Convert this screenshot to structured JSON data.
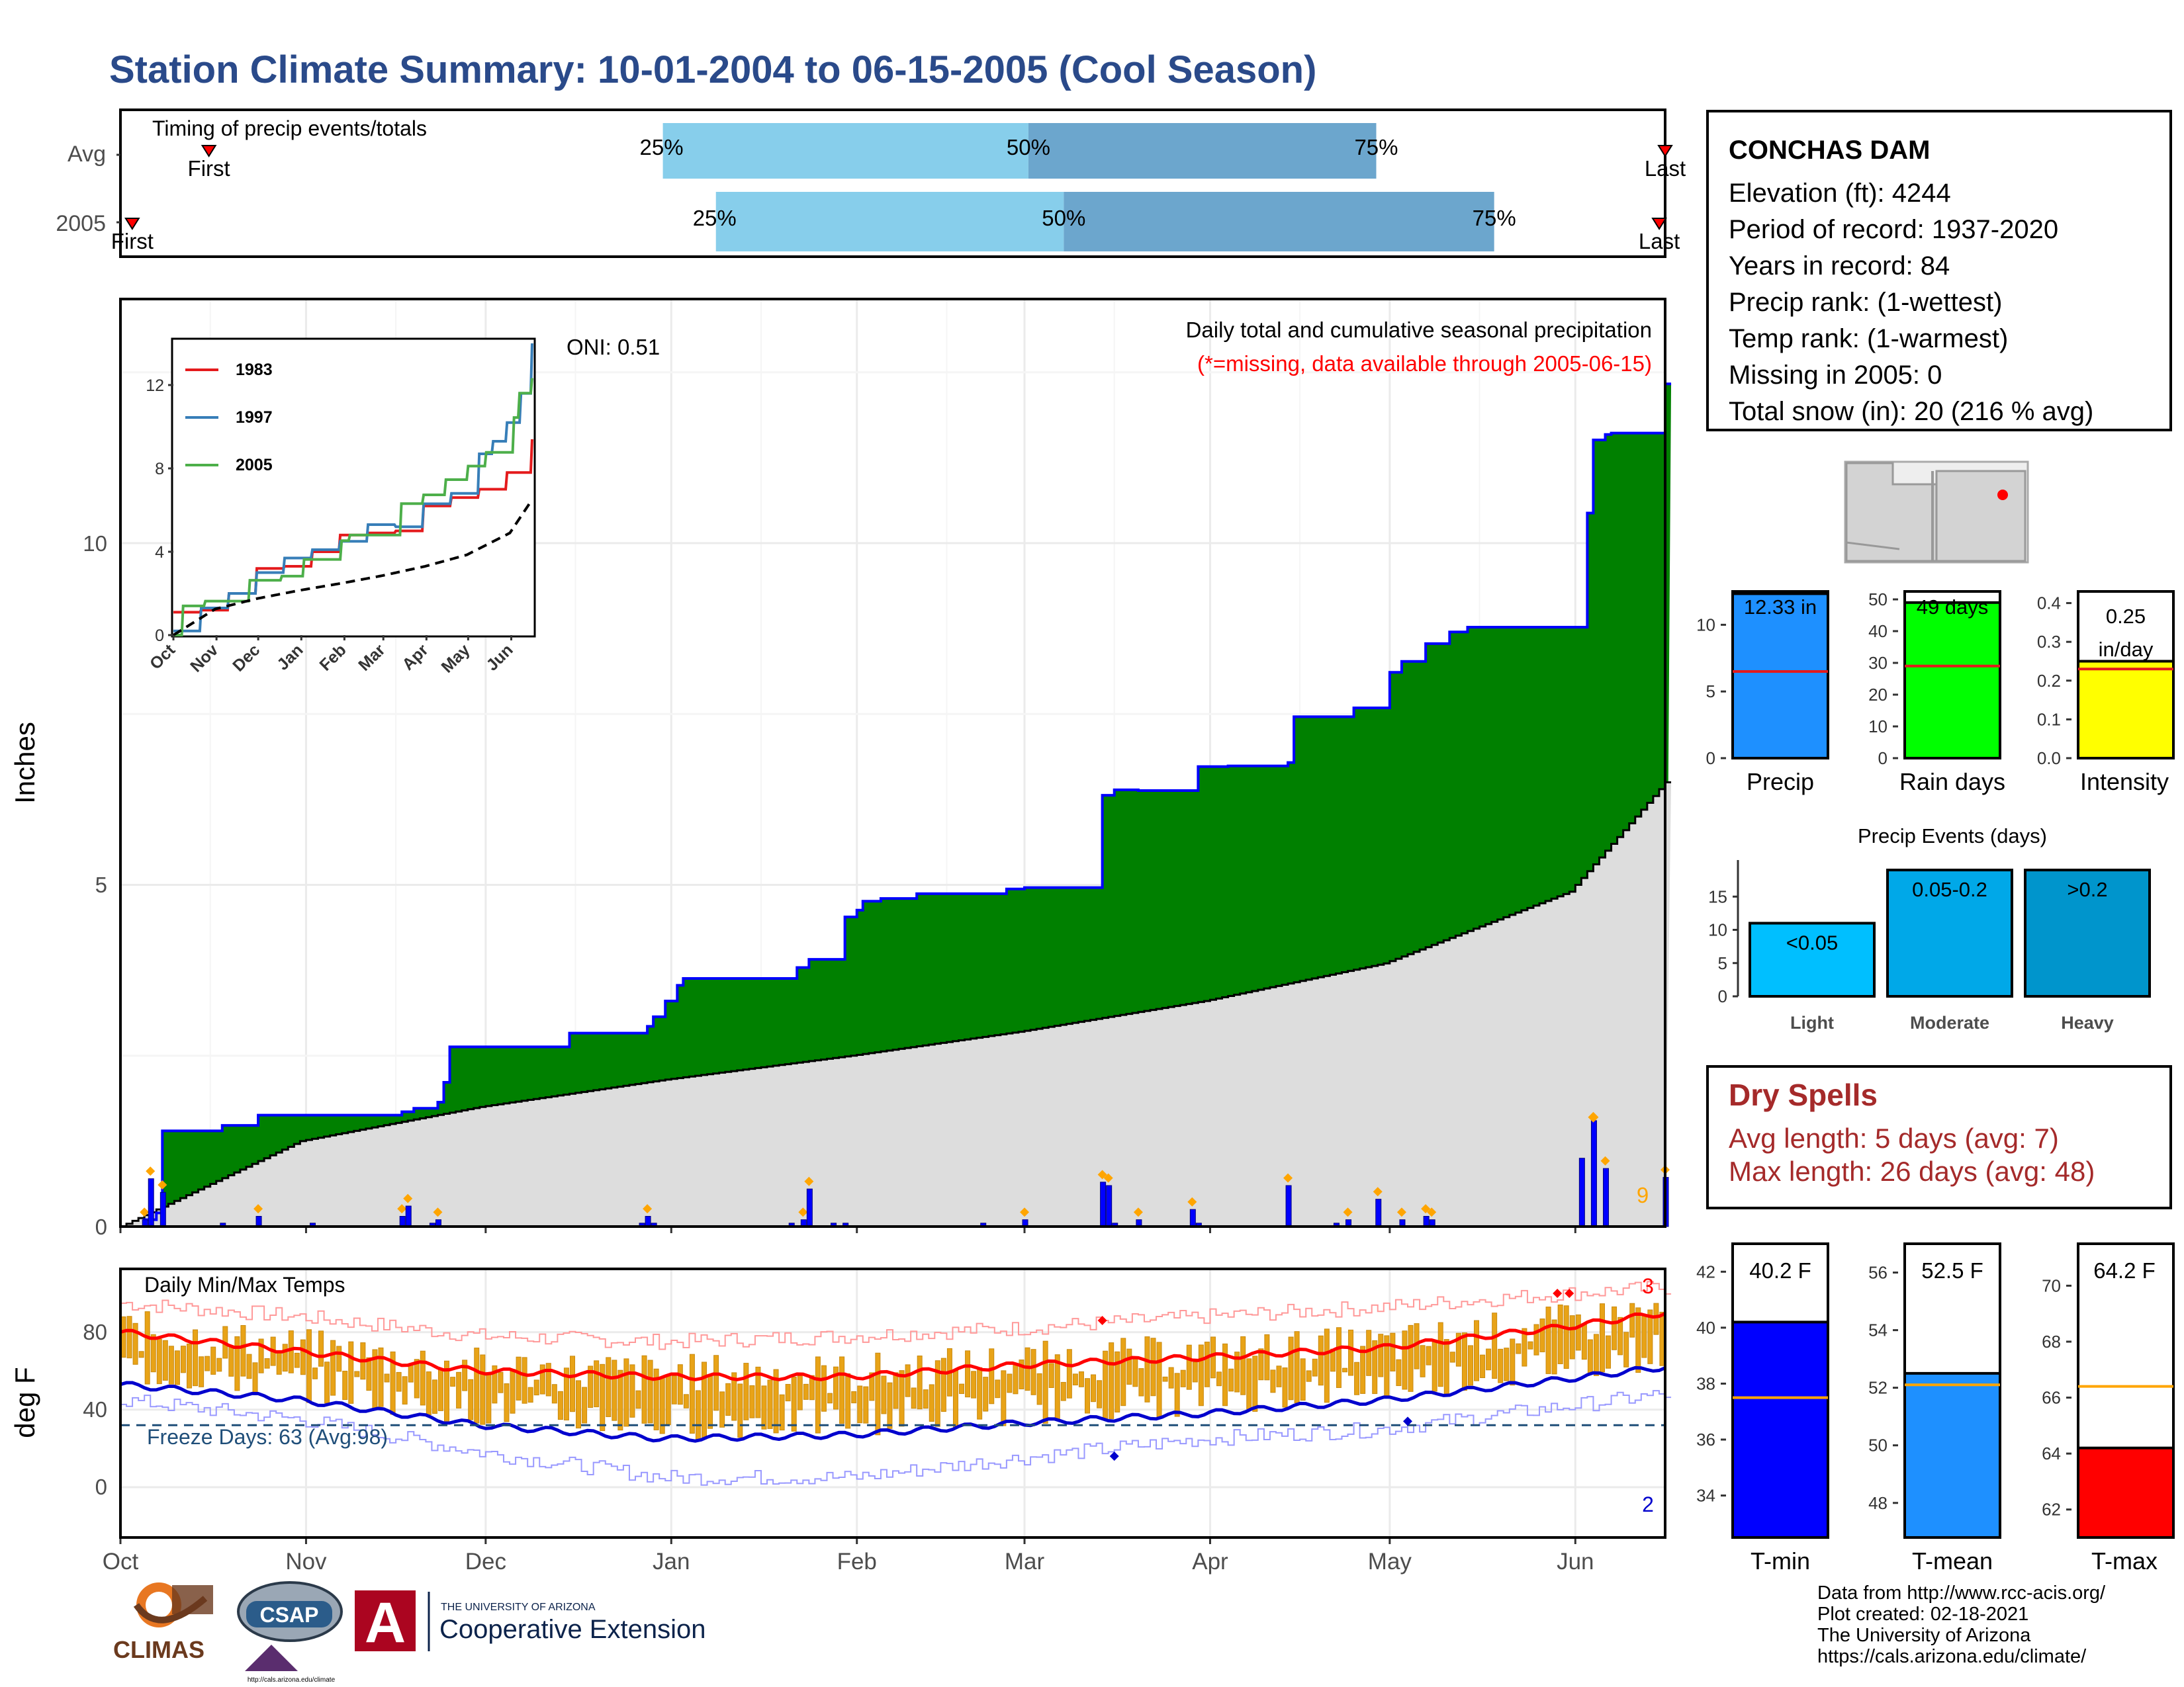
{
  "title": "Station Climate Summary: 10-01-2004 to 06-15-2005 (Cool Season)",
  "timing": {
    "label": "Timing of precip events/totals",
    "rows": [
      {
        "name": "Avg",
        "first_label": "First",
        "last_label": "Last",
        "p25": "25%",
        "p50": "50%",
        "p75": "75%",
        "first_day": 15,
        "q25_day": 92,
        "q50_day": 154,
        "q75_day": 213,
        "last_day": 262
      },
      {
        "name": "2005",
        "first_label": "First",
        "last_label": "Last",
        "p25": "25%",
        "p50": "50%",
        "p75": "75%",
        "first_day": 2,
        "q25_day": 101,
        "q50_day": 160,
        "q75_day": 233,
        "last_day": 261
      }
    ]
  },
  "precip": {
    "ylabel": "Inches",
    "oni": "ONI: 0.51",
    "desc1": "Daily total and cumulative seasonal precipitation",
    "desc2": "(*=missing, data available through 2005-06-15)",
    "count_label": "9",
    "yticks": [
      "0",
      "5",
      "10"
    ],
    "inset": {
      "legend": [
        "1983",
        "1997",
        "2005"
      ],
      "yticks": [
        "0",
        "4",
        "8",
        "12"
      ],
      "xticks": [
        "Oct",
        "Nov",
        "Dec",
        "Jan",
        "Feb",
        "Mar",
        "Apr",
        "May",
        "Jun"
      ]
    }
  },
  "temps": {
    "label": "Daily Min/Max Temps",
    "freeze": "Freeze Days: 63 (Avg:98)",
    "ylabel": "deg F",
    "yticks": [
      "0",
      "40",
      "80"
    ],
    "top_count": "3",
    "bottom_count": "2"
  },
  "xticks": [
    "Oct",
    "Nov",
    "Dec",
    "Jan",
    "Feb",
    "Mar",
    "Apr",
    "May",
    "Jun"
  ],
  "station": {
    "name": "CONCHAS DAM",
    "elevation": "Elevation (ft): 4244",
    "period": "Period of record: 1937-2020",
    "years": "Years in record: 84",
    "precip_rank": "Precip rank:  (1-wettest)",
    "temp_rank": "Temp rank:  (1-warmest)",
    "missing": "Missing in 2005: 0",
    "snow": "Total snow (in): 20 (216 % avg)"
  },
  "summary_bars": {
    "precip": {
      "label": "Precip",
      "value_label": "12.33 in",
      "yticks": [
        "0",
        "5",
        "10"
      ]
    },
    "rain_days": {
      "label": "Rain days",
      "value_label": "49 days",
      "yticks": [
        "0",
        "10",
        "20",
        "30",
        "40",
        "50"
      ]
    },
    "intensity": {
      "label": "Intensity",
      "value_label": "0.25",
      "unit": "in/day",
      "yticks": [
        "0.0",
        "0.1",
        "0.2",
        "0.3",
        "0.4"
      ]
    }
  },
  "events": {
    "title": "Precip Events (days)",
    "bars": [
      {
        "cat": "Light",
        "label": "<0.05"
      },
      {
        "cat": "Moderate",
        "label": "0.05-0.2"
      },
      {
        "cat": "Heavy",
        "label": ">0.2"
      }
    ],
    "yticks": [
      "0",
      "5",
      "10",
      "15"
    ]
  },
  "dry_spells": {
    "title": "Dry Spells",
    "avg": "Avg length: 5 days (avg: 7)",
    "max": "Max length: 26 days (avg: 48)"
  },
  "temp_bars": {
    "tmin": {
      "label": "T-min",
      "value_label": "40.2 F",
      "yticks": [
        "34",
        "36",
        "38",
        "40",
        "42"
      ]
    },
    "tmean": {
      "label": "T-mean",
      "value_label": "52.5 F",
      "yticks": [
        "48",
        "50",
        "52",
        "54",
        "56"
      ]
    },
    "tmax": {
      "label": "T-max",
      "value_label": "64.2 F",
      "yticks": [
        "62",
        "64",
        "66",
        "68",
        "70"
      ]
    }
  },
  "credits": [
    "Data from http://www.rcc-acis.org/",
    "Plot created: 02-18-2021",
    "The University of Arizona",
    "https://cals.arizona.edu/climate/"
  ],
  "logos": {
    "climas": "CLIMAS",
    "csap": "CSAP",
    "csap_url": "http://cals.arizona.edu/climate",
    "ua_line1": "THE UNIVERSITY OF ARIZONA",
    "ua_line2": "Cooperative Extension"
  },
  "colors": {
    "title": "#2a4a8a",
    "cum2005": "#008000",
    "cumAvg": "#dddddd",
    "daily": "#0000ff",
    "quartileLight": "#87ceeb",
    "quartileDark": "#6ca6cd",
    "tmax": "#ff0000",
    "tmin": "#0000cd",
    "bars": "#e8a317",
    "dry": "#a52a2a"
  },
  "chart_data": [
    {
      "type": "area",
      "title": "Daily total and cumulative seasonal precipitation",
      "ylabel": "Inches",
      "x_unit": "days since Oct 1",
      "ylim": [
        0,
        13.5
      ],
      "series": [
        {
          "name": "2005",
          "x": [
            0,
            4,
            6,
            7,
            17,
            23,
            32,
            38,
            47,
            49,
            53,
            54,
            55,
            72,
            75,
            78,
            80,
            87,
            88,
            89,
            91,
            93,
            94,
            111,
            113,
            115,
            121,
            123,
            124,
            127,
            133,
            134,
            135,
            138,
            148,
            151,
            164,
            166,
            170,
            180,
            185,
            195,
            196,
            206,
            212,
            214,
            218,
            222,
            225,
            234,
            240,
            245,
            246,
            248,
            249,
            258,
            268
          ],
          "y": [
            0.0,
            0.1,
            0.2,
            1.4,
            1.48,
            1.63,
            1.63,
            1.63,
            1.68,
            1.73,
            1.82,
            2.11,
            2.63,
            2.63,
            2.83,
            2.83,
            2.83,
            2.83,
            2.93,
            3.07,
            3.3,
            3.53,
            3.63,
            3.63,
            3.79,
            3.91,
            4.53,
            4.63,
            4.76,
            4.8,
            4.87,
            4.87,
            4.87,
            4.87,
            4.94,
            4.96,
            6.31,
            6.39,
            6.38,
            6.73,
            6.74,
            6.79,
            7.46,
            7.59,
            8.11,
            8.27,
            8.53,
            8.7,
            8.77,
            8.77,
            8.77,
            10.44,
            11.51,
            11.59,
            11.61,
            12.33,
            12.33
          ]
        },
        {
          "name": "Avg",
          "x": [
            0,
            30,
            60,
            91,
            122,
            150,
            181,
            211,
            242,
            258
          ],
          "y": [
            0.0,
            1.25,
            1.75,
            2.15,
            2.5,
            2.85,
            3.3,
            3.85,
            4.9,
            6.5
          ]
        }
      ],
      "daily": {
        "x": [
          4,
          5,
          7,
          17,
          23,
          32,
          47,
          48,
          52,
          53,
          87,
          88,
          89,
          112,
          114,
          115,
          119,
          121,
          144,
          151,
          164,
          165,
          166,
          170,
          179,
          180,
          195,
          203,
          205,
          210,
          214,
          218,
          219,
          244,
          246,
          248,
          258
        ],
        "y": [
          0.1,
          0.7,
          0.5,
          0.05,
          0.15,
          0.05,
          0.15,
          0.3,
          0.05,
          0.1,
          0.05,
          0.15,
          0.05,
          0.05,
          0.1,
          0.55,
          0.05,
          0.05,
          0.05,
          0.1,
          0.65,
          0.6,
          0.05,
          0.1,
          0.25,
          0.05,
          0.6,
          0.05,
          0.1,
          0.4,
          0.1,
          0.15,
          0.1,
          1.0,
          1.55,
          0.85,
          0.72
        ]
      },
      "inset": {
        "x_unit": "days since Oct 1",
        "series": [
          {
            "name": "1983",
            "x": [
              0,
              20,
              40,
              60,
              80,
              100,
              120,
              140,
              160,
              180,
              200,
              220,
              240,
              258
            ],
            "y": [
              1.1,
              1.2,
              2.0,
              3.2,
              3.3,
              4.0,
              4.8,
              4.9,
              5.0,
              6.2,
              6.6,
              7.0,
              7.8,
              9.4
            ]
          },
          {
            "name": "1997",
            "x": [
              0,
              20,
              40,
              60,
              80,
              100,
              120,
              140,
              160,
              180,
              200,
              220,
              230,
              240,
              250,
              258
            ],
            "y": [
              0.2,
              1.3,
              2.0,
              3.0,
              3.7,
              4.1,
              4.5,
              5.3,
              5.2,
              6.3,
              6.8,
              8.7,
              9.3,
              10.2,
              11.6,
              14.0
            ]
          },
          {
            "name": "2005",
            "x": [
              0,
              7,
              23,
              55,
              78,
              94,
              121,
              127,
              164,
              180,
              196,
              212,
              225,
              245,
              249,
              258
            ],
            "y": [
              0.0,
              1.4,
              1.63,
              2.63,
              2.83,
              3.63,
              4.53,
              4.8,
              6.31,
              6.73,
              7.46,
              8.11,
              8.77,
              10.44,
              11.61,
              12.33
            ]
          },
          {
            "name": "Avg",
            "x": [
              0,
              30,
              60,
              91,
              122,
              150,
              181,
              211,
              242,
              258
            ],
            "y": [
              0.0,
              1.25,
              1.75,
              2.15,
              2.5,
              2.85,
              3.3,
              3.85,
              4.9,
              6.5
            ]
          }
        ]
      }
    },
    {
      "type": "bar",
      "title": "Daily Min/Max Temps",
      "ylabel": "deg F",
      "x_unit": "days since Oct 1",
      "ylim": [
        -20,
        100
      ],
      "smooth_tmax": {
        "x": [
          0,
          30,
          60,
          91,
          122,
          150,
          181,
          211,
          242,
          258
        ],
        "y": [
          80,
          70,
          60,
          57,
          57,
          63,
          67,
          72,
          83,
          90
        ]
      },
      "smooth_tmin": {
        "x": [
          0,
          30,
          60,
          91,
          122,
          150,
          181,
          211,
          242,
          258
        ],
        "y": [
          53,
          45,
          32,
          25,
          27,
          33,
          38,
          45,
          56,
          62
        ]
      },
      "record_high": {
        "x": [
          0,
          30,
          60,
          91,
          122,
          150,
          181,
          211,
          242,
          258
        ],
        "y": [
          95,
          88,
          78,
          75,
          78,
          82,
          88,
          93,
          100,
          103
        ]
      },
      "record_low": {
        "x": [
          0,
          30,
          60,
          91,
          122,
          150,
          181,
          211,
          242,
          258
        ],
        "y": [
          45,
          35,
          18,
          5,
          5,
          15,
          25,
          30,
          42,
          48
        ]
      },
      "freeze_line": 32
    },
    {
      "type": "bar",
      "categories": [
        "Precip",
        "Rain days",
        "Intensity"
      ],
      "values": [
        12.33,
        49,
        0.25
      ],
      "averages": [
        6.5,
        29,
        0.23
      ]
    },
    {
      "type": "bar",
      "title": "Precip Events (days)",
      "categories": [
        "Light",
        "Moderate",
        "Heavy"
      ],
      "values": [
        11,
        19,
        19
      ]
    },
    {
      "type": "bar",
      "categories": [
        "T-min",
        "T-mean",
        "T-max"
      ],
      "values": [
        40.2,
        52.5,
        64.2
      ],
      "averages": [
        37.5,
        52.1,
        66.4
      ]
    }
  ]
}
